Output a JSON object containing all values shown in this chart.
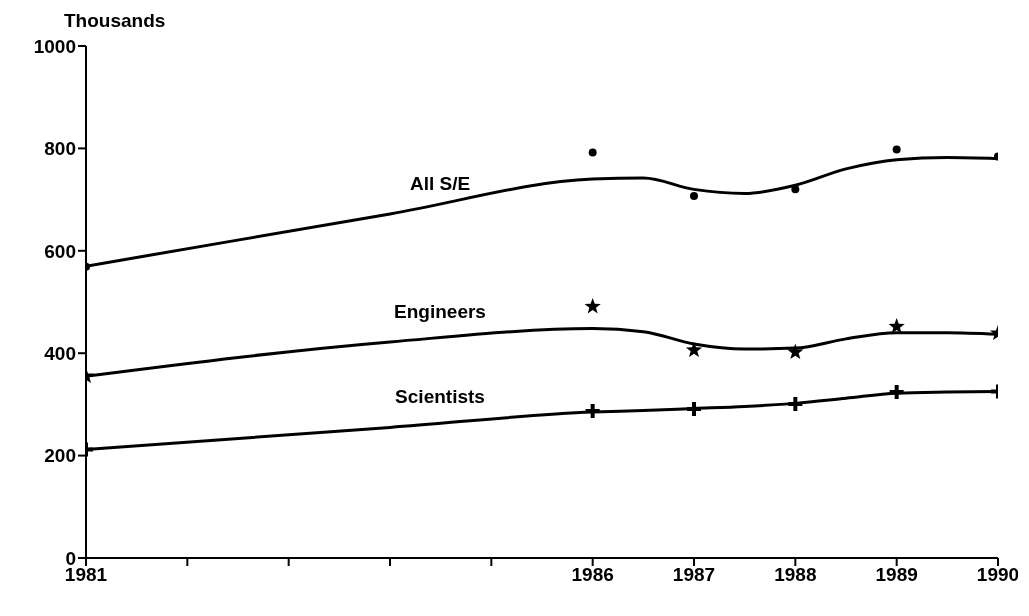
{
  "chart_data": {
    "type": "line",
    "ylabel": "Thousands",
    "xlim": [
      1981,
      1990
    ],
    "xticks": [
      1981,
      {
        "value": 1982,
        "label": null
      },
      {
        "value": 1983,
        "label": null
      },
      {
        "value": 1984,
        "label": null
      },
      {
        "value": 1985,
        "label": null
      },
      1986,
      1987,
      1988,
      1989,
      1990
    ],
    "ylim": [
      0,
      1000
    ],
    "yticks": [
      0,
      200,
      400,
      600,
      800,
      1000
    ],
    "series": [
      {
        "type": "scatter",
        "color": "#000000",
        "marker": "circle",
        "x": [
          1981,
          1986,
          1987,
          1988,
          1989,
          1990
        ],
        "values": [
          569,
          792,
          707,
          720,
          798,
          784
        ]
      },
      {
        "type": "scatter",
        "color": "#000000",
        "marker": "star",
        "x": [
          1981,
          1986,
          1987,
          1988,
          1989,
          1990
        ],
        "values": [
          355,
          491,
          406,
          402,
          452,
          439
        ]
      },
      {
        "type": "scatter",
        "color": "#000000",
        "marker": "cross",
        "x": [
          1981,
          1986,
          1987,
          1988,
          1989,
          1990
        ],
        "values": [
          212,
          287,
          291,
          301,
          324,
          325
        ]
      },
      {
        "name": "All S/E",
        "color": "#000000",
        "x": [
          1981,
          1984,
          1986,
          1986.5,
          1987,
          1987.5,
          1988,
          1988.5,
          1989,
          1989.5,
          1990
        ],
        "values": [
          570,
          672,
          740,
          742,
          720,
          712,
          728,
          760,
          778,
          782,
          780
        ]
      },
      {
        "name": "Engineers",
        "color": "#000000",
        "x": [
          1981,
          1984,
          1986,
          1986.5,
          1987,
          1987.5,
          1988,
          1988.5,
          1989,
          1989.5,
          1990
        ],
        "values": [
          355,
          422,
          448,
          442,
          418,
          408,
          410,
          428,
          440,
          440,
          437
        ]
      },
      {
        "name": "Scientists",
        "color": "#000000",
        "x": [
          1981,
          1984,
          1986,
          1986.5,
          1987,
          1987.5,
          1988,
          1988.5,
          1989,
          1989.5,
          1990
        ],
        "values": [
          212,
          255,
          285,
          288,
          292,
          296,
          302,
          312,
          322,
          324,
          325
        ]
      }
    ]
  }
}
